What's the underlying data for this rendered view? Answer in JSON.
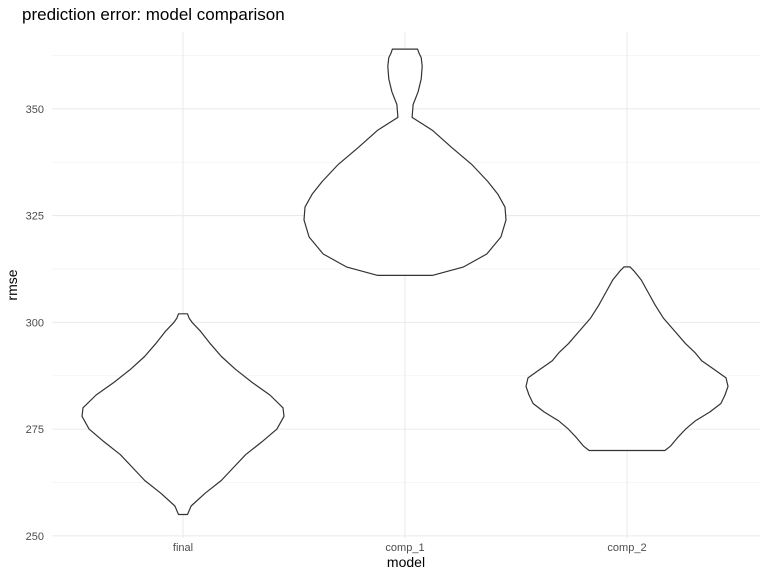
{
  "colors": {
    "background": "#ffffff",
    "grid_major": "#ebebeb",
    "grid_minor": "#f3f3f3",
    "violin_outline": "#333333",
    "violin_fill": "#ffffff",
    "tick_text": "#4d4d4d"
  },
  "chart_data": {
    "type": "violin",
    "title": "prediction error: model comparison",
    "xlabel": "model",
    "ylabel": "rmse",
    "categories": [
      "final",
      "comp_1",
      "comp_2"
    ],
    "yticks": [
      250,
      275,
      300,
      325,
      350
    ],
    "ylim": [
      249.5,
      368
    ],
    "grid": true,
    "legend": "none",
    "series": [
      {
        "category": "final",
        "min": 255,
        "max": 302,
        "profile": [
          [
            255,
            0.045
          ],
          [
            257,
            0.08
          ],
          [
            260,
            0.22
          ],
          [
            263,
            0.38
          ],
          [
            266,
            0.5
          ],
          [
            269,
            0.62
          ],
          [
            272,
            0.78
          ],
          [
            275,
            0.93
          ],
          [
            278,
            1.0
          ],
          [
            280,
            0.99
          ],
          [
            283,
            0.86
          ],
          [
            286,
            0.68
          ],
          [
            289,
            0.52
          ],
          [
            292,
            0.38
          ],
          [
            295,
            0.27
          ],
          [
            298,
            0.17
          ],
          [
            300,
            0.09
          ],
          [
            301,
            0.06
          ],
          [
            302,
            0.045
          ]
        ]
      },
      {
        "category": "comp_1",
        "min": 311,
        "max": 364,
        "profile": [
          [
            311,
            0.27
          ],
          [
            313,
            0.58
          ],
          [
            316,
            0.81
          ],
          [
            320,
            0.95
          ],
          [
            324,
            1.0
          ],
          [
            327,
            0.99
          ],
          [
            330,
            0.92
          ],
          [
            333,
            0.82
          ],
          [
            337,
            0.66
          ],
          [
            341,
            0.46
          ],
          [
            345,
            0.27
          ],
          [
            348,
            0.07
          ],
          [
            351,
            0.08
          ],
          [
            354,
            0.13
          ],
          [
            357,
            0.16
          ],
          [
            360,
            0.17
          ],
          [
            362,
            0.16
          ],
          [
            363,
            0.14
          ],
          [
            364,
            0.125
          ]
        ]
      },
      {
        "category": "comp_2",
        "min": 270,
        "max": 313,
        "profile": [
          [
            270,
            0.375
          ],
          [
            271,
            0.43
          ],
          [
            273,
            0.5
          ],
          [
            275,
            0.58
          ],
          [
            277,
            0.68
          ],
          [
            279,
            0.82
          ],
          [
            281,
            0.93
          ],
          [
            283,
            0.97
          ],
          [
            285,
            1.0
          ],
          [
            287,
            0.98
          ],
          [
            289,
            0.86
          ],
          [
            291,
            0.74
          ],
          [
            293,
            0.67
          ],
          [
            295,
            0.58
          ],
          [
            298,
            0.47
          ],
          [
            301,
            0.36
          ],
          [
            304,
            0.28
          ],
          [
            307,
            0.21
          ],
          [
            310,
            0.14
          ],
          [
            312,
            0.07
          ],
          [
            313,
            0.03
          ]
        ]
      }
    ]
  }
}
